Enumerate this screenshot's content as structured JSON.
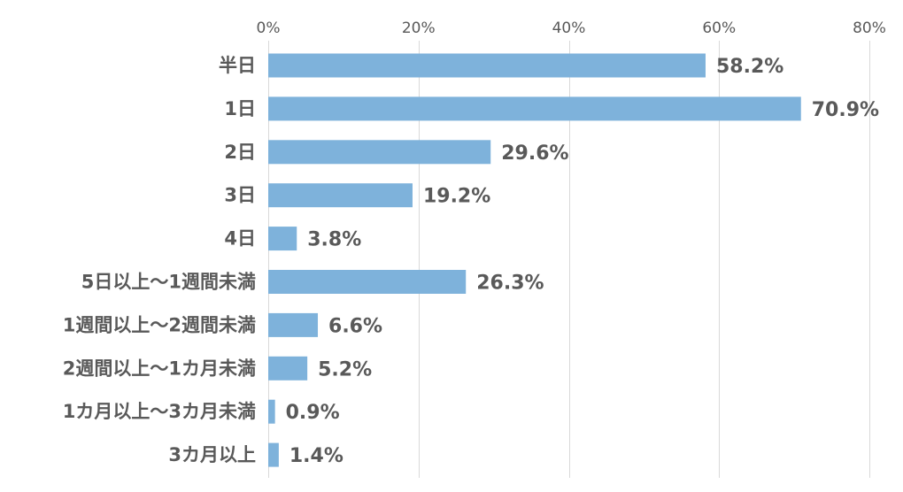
{
  "chart_data": {
    "type": "bar",
    "orientation": "horizontal",
    "title": "",
    "xlabel": "",
    "ylabel": "",
    "categories": [
      "半日",
      "1日",
      "2日",
      "3日",
      "4日",
      "5日以上～1週間未満",
      "1週間以上～2週間未満",
      "2週間以上～1カ月未満",
      "1カ月以上～3カ月未満",
      "3カ月以上"
    ],
    "values": [
      58.2,
      70.9,
      29.6,
      19.2,
      3.8,
      26.3,
      6.6,
      5.2,
      0.9,
      1.4
    ],
    "value_labels": [
      "58.2%",
      "70.9%",
      "29.6%",
      "19.2%",
      "3.8%",
      "26.3%",
      "6.6%",
      "5.2%",
      "0.9%",
      "1.4%"
    ],
    "xlim": [
      0,
      80
    ],
    "x_ticks": [
      0,
      20,
      40,
      60,
      80
    ],
    "x_tick_labels": [
      "0%",
      "20%",
      "40%",
      "60%",
      "80%"
    ],
    "x_axis_position": "top",
    "grid": true,
    "legend": "none",
    "bar_color": "#7eb2db",
    "gridline_color": "#d9d9d9",
    "text_color": "#595959"
  }
}
